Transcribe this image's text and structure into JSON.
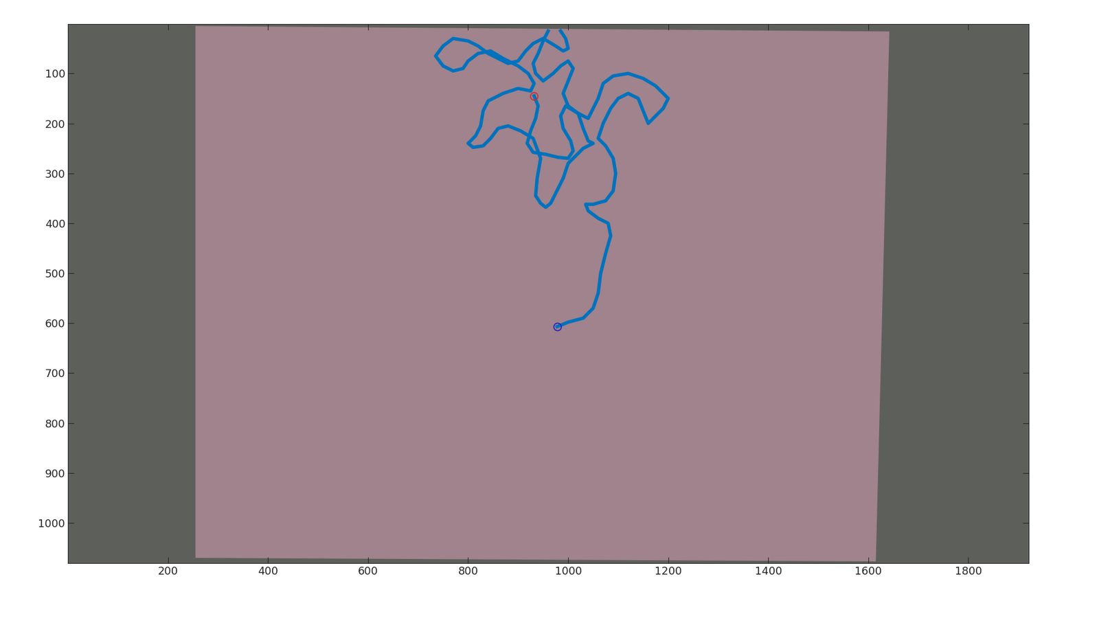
{
  "chart_data": {
    "type": "line",
    "xlim": [
      0.5,
      1920.5
    ],
    "ylim": [
      1080.5,
      0.5
    ],
    "xticks": [
      200,
      400,
      600,
      800,
      1000,
      1200,
      1400,
      1600,
      1800
    ],
    "yticks": [
      100,
      200,
      300,
      400,
      500,
      600,
      700,
      800,
      900,
      1000
    ],
    "grid": false,
    "series": [
      {
        "type": "line",
        "color": "#0072BD",
        "line_style": "solid",
        "x": [
          932,
          940,
          935,
          925,
          918,
          930,
          955,
          980,
          1000,
          1010,
          1005,
          990,
          985,
          995,
          1020,
          1030,
          1040,
          1050,
          1030,
          1015,
          1000,
          990,
          975,
          965,
          955,
          945,
          935,
          938,
          945,
          930,
          905,
          880,
          860,
          845,
          830,
          810,
          800,
          815,
          825,
          830,
          840,
          870,
          900,
          925,
          932,
          920,
          900,
          870,
          845,
          820,
          800,
          790,
          770,
          750,
          735,
          750,
          770,
          800,
          820,
          840,
          860,
          880,
          900,
          915,
          930,
          950,
          975,
          990,
          1000,
          995,
          985,
          null,
          960,
          950,
          940,
          930,
          935,
          950,
          970,
          985,
          1000,
          1010,
          1000,
          990,
          1000,
          1020,
          1040,
          1060,
          1070,
          1090,
          1120,
          1150,
          1175,
          1200,
          1190,
          1170,
          1160,
          1150,
          1140,
          1120,
          1100,
          1085,
          1070,
          1060,
          1075,
          1090,
          1095,
          1090,
          1075,
          1050,
          1035,
          1040,
          1060,
          1080,
          1085,
          1075,
          1065,
          1060,
          1050,
          1030,
          1000,
          978
        ],
        "y": [
          145,
          165,
          190,
          215,
          240,
          258,
          262,
          268,
          270,
          255,
          235,
          210,
          185,
          165,
          180,
          210,
          235,
          240,
          250,
          265,
          280,
          310,
          340,
          360,
          368,
          360,
          345,
          310,
          270,
          230,
          215,
          205,
          210,
          230,
          245,
          248,
          240,
          225,
          205,
          175,
          155,
          140,
          130,
          135,
          120,
          100,
          85,
          70,
          55,
          60,
          75,
          90,
          95,
          85,
          65,
          45,
          30,
          35,
          45,
          60,
          70,
          80,
          75,
          55,
          40,
          30,
          45,
          55,
          50,
          30,
          15,
          null,
          15,
          35,
          60,
          80,
          100,
          115,
          100,
          85,
          75,
          90,
          115,
          140,
          165,
          180,
          190,
          150,
          120,
          105,
          100,
          110,
          125,
          150,
          170,
          190,
          200,
          175,
          150,
          140,
          150,
          170,
          200,
          230,
          245,
          270,
          300,
          335,
          355,
          362,
          362,
          375,
          390,
          400,
          425,
          460,
          500,
          540,
          570,
          590,
          598,
          607
        ]
      },
      {
        "type": "scatter",
        "color": "#D62728",
        "marker": "circle",
        "x": [
          932
        ],
        "y": [
          145
        ]
      },
      {
        "type": "scatter",
        "color": "#1F1FBF",
        "marker": "circle",
        "x": [
          978
        ],
        "y": [
          607
        ]
      }
    ]
  }
}
